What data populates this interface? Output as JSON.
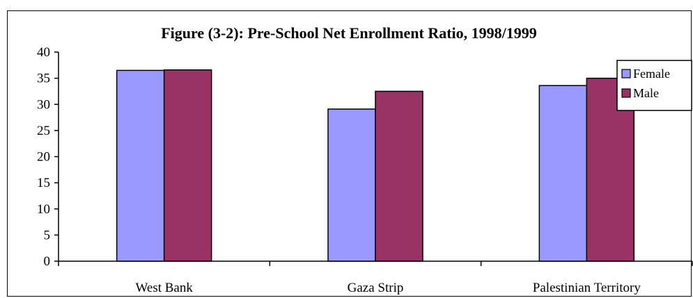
{
  "chart_data": {
    "type": "bar",
    "title": "Figure (3-2): Pre-School Net Enrollment Ratio, 1998/1999",
    "categories": [
      "West Bank",
      "Gaza Strip",
      "Palestinian Territory"
    ],
    "series": [
      {
        "name": "Female",
        "values": [
          36.5,
          29.1,
          33.6
        ],
        "color": "#9999ff"
      },
      {
        "name": "Male",
        "values": [
          36.6,
          32.5,
          35.0
        ],
        "color": "#993366"
      }
    ],
    "ylim": [
      0,
      40
    ],
    "yticks": [
      "0",
      "5",
      "10",
      "15",
      "20",
      "25",
      "30",
      "35",
      "40"
    ],
    "grid": false,
    "legend": "top-right"
  }
}
